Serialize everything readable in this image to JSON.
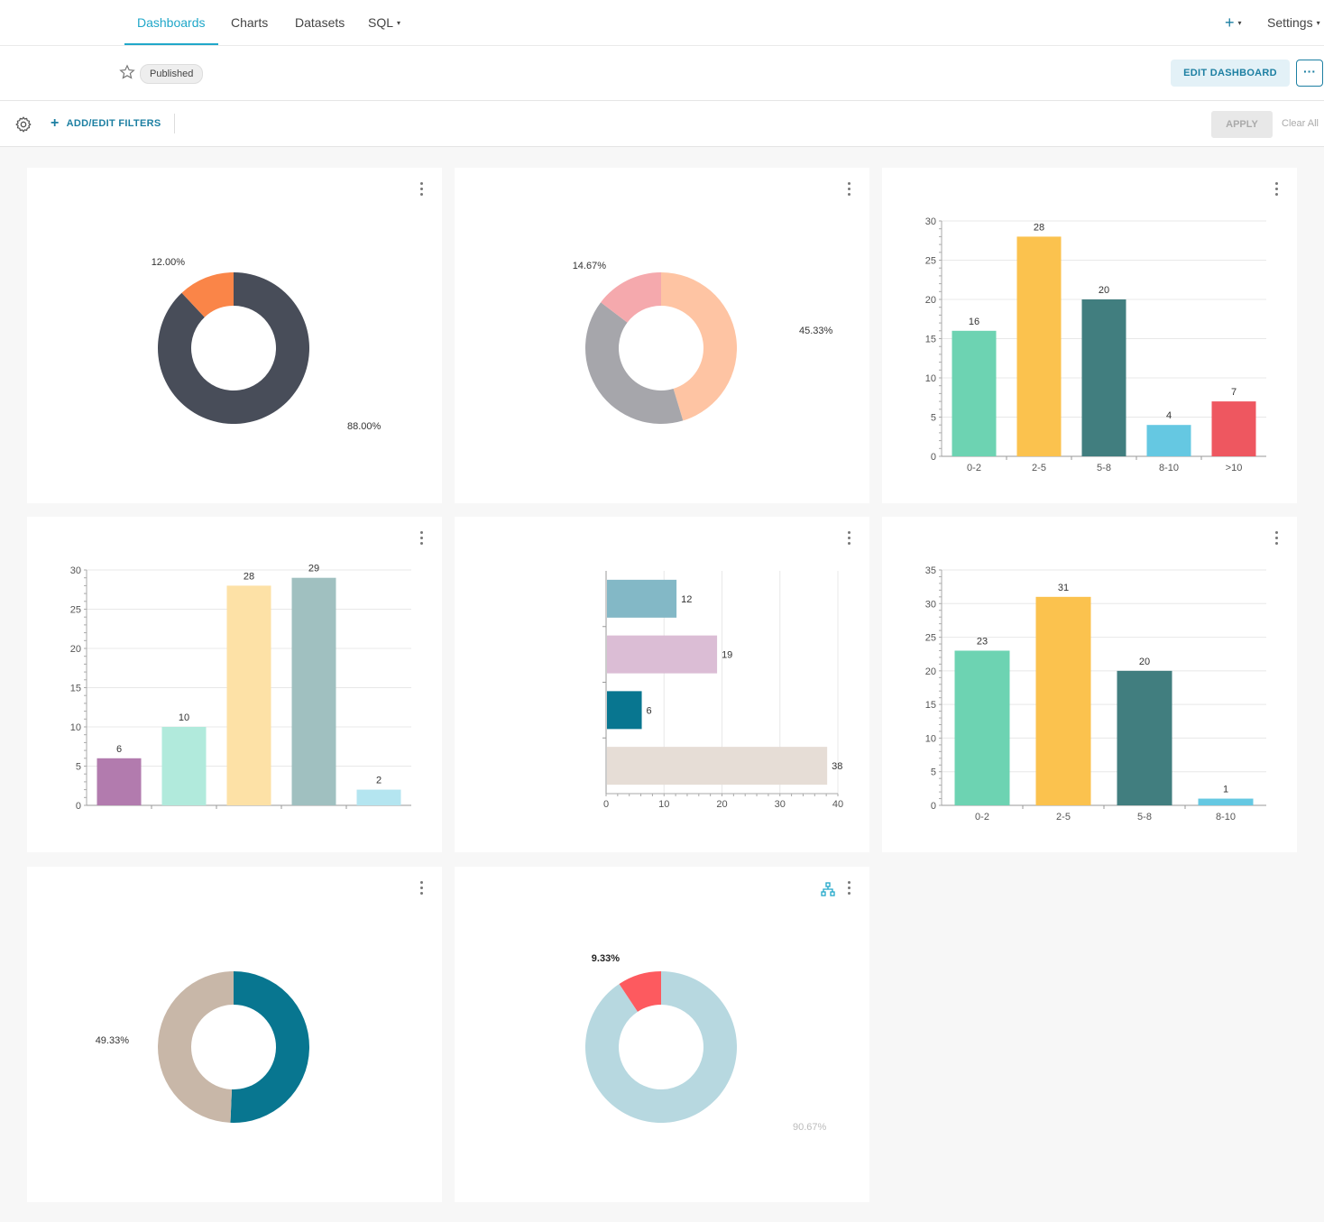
{
  "nav": {
    "items": [
      {
        "label": "Dashboards",
        "active": true
      },
      {
        "label": "Charts"
      },
      {
        "label": "Datasets"
      },
      {
        "label": "SQL"
      }
    ],
    "plus_label": "+",
    "settings_label": "Settings",
    "caret": "▾"
  },
  "header": {
    "published_label": "Published",
    "edit_label": "EDIT DASHBOARD",
    "more_label": "···"
  },
  "filterbar": {
    "add_filters_label": "ADD/EDIT FILTERS",
    "plus": "+",
    "apply_label": "APPLY",
    "clear_label": "Clear All"
  },
  "colors": {
    "accent": "#20a7c9",
    "primary": "#1c7fa2"
  },
  "chart_data": [
    {
      "type": "pie",
      "slices": [
        {
          "value": 88.0,
          "label": "88.00%",
          "color": "#484d59"
        },
        {
          "value": 12.0,
          "label": "12.00%",
          "color": "#fa8548"
        }
      ]
    },
    {
      "type": "pie",
      "slices": [
        {
          "value": 45.33,
          "label": "45.33%",
          "color": "#fec4a3"
        },
        {
          "value": 40.0,
          "label": "",
          "color": "#a6a6ab"
        },
        {
          "value": 14.67,
          "label": "14.67%",
          "color": "#f5a9ad"
        }
      ]
    },
    {
      "type": "bar",
      "categories": [
        "0-2",
        "2-5",
        "5-8",
        "8-10",
        ">10"
      ],
      "values": [
        16,
        28,
        20,
        4,
        7
      ],
      "colors": [
        "#6dd3b2",
        "#fbc24e",
        "#417e7f",
        "#65c8e2",
        "#ee5760"
      ],
      "ylim": [
        0,
        30
      ],
      "yticks": [
        0,
        5,
        10,
        15,
        20,
        25,
        30
      ]
    },
    {
      "type": "bar",
      "categories": [
        "",
        "",
        "",
        "",
        ""
      ],
      "values": [
        6,
        10,
        28,
        29,
        2
      ],
      "colors": [
        "#b27bae",
        "#b1eadc",
        "#fde1a6",
        "#a0c0c0",
        "#b4e5f0"
      ],
      "ylim": [
        0,
        30
      ],
      "yticks": [
        0,
        5,
        10,
        15,
        20,
        25,
        30
      ]
    },
    {
      "type": "bar",
      "orientation": "horizontal",
      "categories": [
        "",
        "",
        "",
        ""
      ],
      "values": [
        12,
        19,
        6,
        38
      ],
      "colors": [
        "#83b8c6",
        "#dbbdd5",
        "#087690",
        "#e6ddd6"
      ],
      "xlim": [
        0,
        40
      ],
      "xticks": [
        0,
        10,
        20,
        30,
        40
      ]
    },
    {
      "type": "bar",
      "categories": [
        "0-2",
        "2-5",
        "5-8",
        "8-10"
      ],
      "values": [
        23,
        31,
        20,
        1
      ],
      "colors": [
        "#6dd3b2",
        "#fbc24e",
        "#417e7f",
        "#65c8e2"
      ],
      "ylim": [
        0,
        35
      ],
      "yticks": [
        0,
        5,
        10,
        15,
        20,
        25,
        30,
        35
      ]
    },
    {
      "type": "pie",
      "slices": [
        {
          "value": 50.67,
          "label": "",
          "color": "#087690"
        },
        {
          "value": 49.33,
          "label": "49.33%",
          "color": "#c8b7a8"
        }
      ]
    },
    {
      "type": "pie",
      "slices": [
        {
          "value": 90.67,
          "label": "90.67%",
          "color": "#b7d8e0"
        },
        {
          "value": 9.33,
          "label": "9.33%",
          "color": "#fd5a5f"
        }
      ]
    }
  ]
}
